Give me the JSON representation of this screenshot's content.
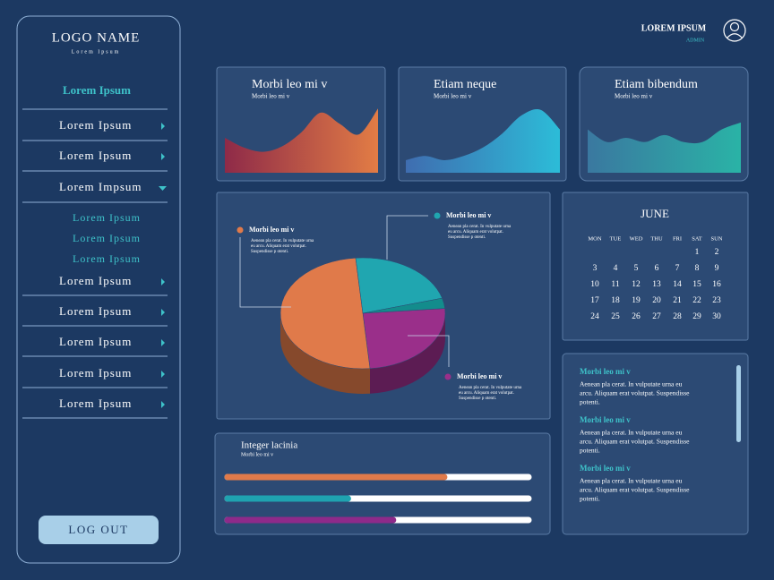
{
  "sidebar": {
    "logo": "LOGO NAME",
    "tagline": "Lorem Ipsum",
    "active": "Lorem Ipsum",
    "menu": [
      "Lorem Ipsum",
      "Lorem Ipsum",
      "Lorem Impsum"
    ],
    "submenu": [
      "Lorem Ipsum",
      "Lorem Ipsum",
      "Lorem Ipsum"
    ],
    "menu_more": [
      "Lorem Ipsum",
      "Lorem Ipsum",
      "Lorem Ipsum",
      "Lorem Ipsum",
      "Lorem Ipsum"
    ],
    "logout": "LOG OUT"
  },
  "header": {
    "user": "LOREM IPSUM",
    "role": "ADMIN"
  },
  "sparklines": [
    {
      "title": "Morbi leo mi v",
      "subtitle": "Morbi leo mi v",
      "values": [
        50,
        36,
        30,
        38,
        58,
        86,
        70,
        55,
        92
      ],
      "ylim": [
        0,
        100
      ]
    },
    {
      "title": "Etiam neque",
      "subtitle": "Morbi leo mi v",
      "values": [
        18,
        24,
        18,
        24,
        36,
        56,
        82,
        90,
        62
      ],
      "ylim": [
        0,
        100
      ]
    },
    {
      "title": "Etiam bibendum",
      "subtitle": "Morbi leo mi v",
      "values": [
        62,
        44,
        50,
        44,
        54,
        44,
        44,
        62,
        72
      ],
      "ylim": [
        0,
        100
      ]
    }
  ],
  "pie": {
    "slices": [
      {
        "name": "Morbi leo mi v",
        "value": 25,
        "color": "#9a2f8a",
        "description": [
          "Aenean pla cerat. In vulputate urna",
          "eu arcu. Aliquam erat volutpat.",
          "Suspendisse p otenti."
        ]
      },
      {
        "name": "Morbi leo mi v",
        "value": 50,
        "color": "#e07a4a",
        "description": [
          "Aenean pla cerat. In vulputate urna",
          "eu arcu. Aliquam erat volutpat.",
          "Suspendisse p otenti."
        ]
      },
      {
        "name": "Morbi leo mi v",
        "value": 22,
        "color": "#20a6b0",
        "description": [
          "Aenean pla cerat. In vulputate urna",
          "eu arcu. Aliquam erat volutpat.",
          "Suspendisse p otenti."
        ]
      },
      {
        "value": 3,
        "color": "#138c8c"
      }
    ]
  },
  "calendar": {
    "month": "JUNE",
    "weekdays": [
      "MON",
      "TUE",
      "WED",
      "THU",
      "FRI",
      "SAT",
      "SUN"
    ],
    "weeks": [
      [
        null,
        null,
        null,
        null,
        null,
        1,
        2
      ],
      [
        3,
        4,
        5,
        6,
        7,
        8,
        9
      ],
      [
        10,
        11,
        12,
        13,
        14,
        15,
        16
      ],
      [
        17,
        18,
        19,
        20,
        21,
        22,
        23
      ],
      [
        24,
        25,
        26,
        27,
        28,
        29,
        30
      ]
    ]
  },
  "notes": {
    "items": [
      {
        "title": "Morbi leo mi v",
        "body": [
          "Aenean pla cerat. In vulputate urna eu",
          "arcu. Aliquam erat volutpat. Suspendisse",
          "potenti."
        ]
      },
      {
        "title": "Morbi leo mi v",
        "body": [
          "Aenean pla cerat. In vulputate urna eu",
          "arcu. Aliquam erat volutpat. Suspendisse",
          "potenti."
        ]
      },
      {
        "title": "Morbi leo mi v",
        "body": [
          "Aenean pla cerat. In vulputate urna eu",
          "arcu. Aliquam erat volutpat. Suspendisse",
          "potenti."
        ]
      }
    ]
  },
  "progress": {
    "title": "Integer lacinia",
    "subtitle": "Morbi leo mi v",
    "xlim": [
      0,
      100
    ],
    "bars": [
      {
        "value": 72,
        "color": "#e07a4a"
      },
      {
        "value": 40,
        "color": "#1fa3b0"
      },
      {
        "value": 55,
        "color": "#8e2a8a"
      }
    ]
  }
}
